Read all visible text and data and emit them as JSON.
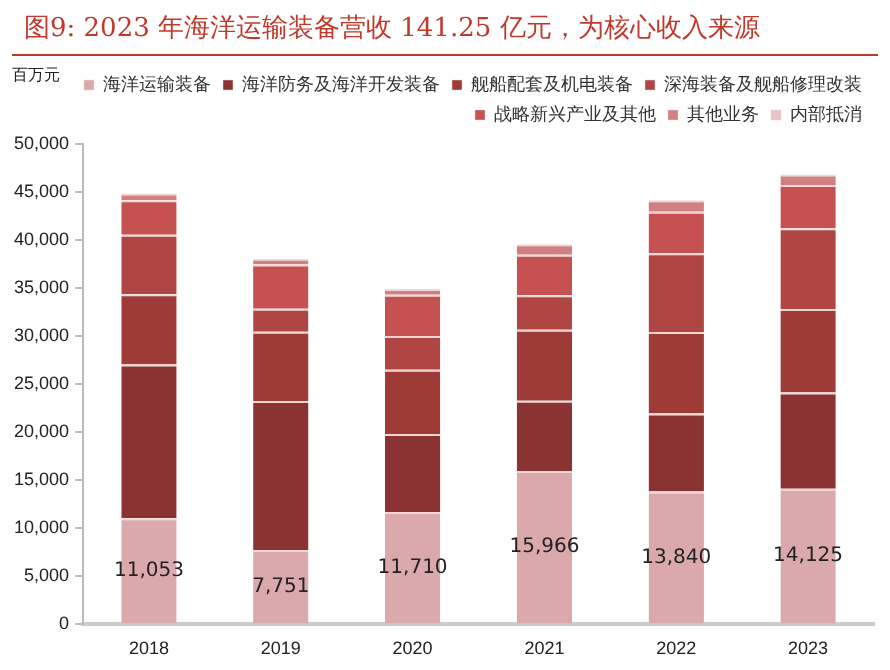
{
  "chart_data": {
    "type": "bar",
    "title": "图9:  2023 年海洋运输装备营收 141.25 亿元，为核心收入来源",
    "ylabel": "百万元",
    "categories": [
      "2018",
      "2019",
      "2020",
      "2021",
      "2022",
      "2023"
    ],
    "stacked": true,
    "ylim": [
      0,
      50000
    ],
    "yticks": [
      {
        "value": 0,
        "label": "0"
      },
      {
        "value": 5000,
        "label": "5,000"
      },
      {
        "value": 10000,
        "label": "10,000"
      },
      {
        "value": 15000,
        "label": "15,000"
      },
      {
        "value": 20000,
        "label": "20,000"
      },
      {
        "value": 25000,
        "label": "25,000"
      },
      {
        "value": 30000,
        "label": "30,000"
      },
      {
        "value": 35000,
        "label": "35,000"
      },
      {
        "value": 40000,
        "label": "40,000"
      },
      {
        "value": 45000,
        "label": "45,000"
      },
      {
        "value": 50000,
        "label": "50,000"
      }
    ],
    "grid": false,
    "legend": "top",
    "series": [
      {
        "name": "海洋运输装备",
        "color": "#dba9ab",
        "values": [
          11053,
          7751,
          11710,
          15966,
          13840,
          14125
        ],
        "value_labels": [
          "11,053",
          "7,751",
          "11,710",
          "15,966",
          "13,840",
          "14,125"
        ]
      },
      {
        "name": "海洋防务及海洋开发装备",
        "color": "#8b3232",
        "values": [
          16000,
          15500,
          8100,
          7300,
          8100,
          10000
        ]
      },
      {
        "name": "舰船配套及机电装备",
        "color": "#9e3b36",
        "values": [
          7300,
          7200,
          6700,
          7400,
          8500,
          8700
        ]
      },
      {
        "name": "深海装备及舰船修理改装",
        "color": "#b04644",
        "values": [
          6200,
          2400,
          3500,
          3600,
          8200,
          8400
        ]
      },
      {
        "name": "战略新兴产业及其他",
        "color": "#c55250",
        "values": [
          3600,
          4600,
          4300,
          4200,
          4300,
          4500
        ]
      },
      {
        "name": "其他业务",
        "color": "#d08080",
        "values": [
          700,
          600,
          600,
          1100,
          1200,
          1100
        ]
      },
      {
        "name": "内部抵消",
        "color": "#e8c4c6",
        "values": [
          null,
          null,
          null,
          null,
          null,
          null
        ]
      }
    ]
  }
}
